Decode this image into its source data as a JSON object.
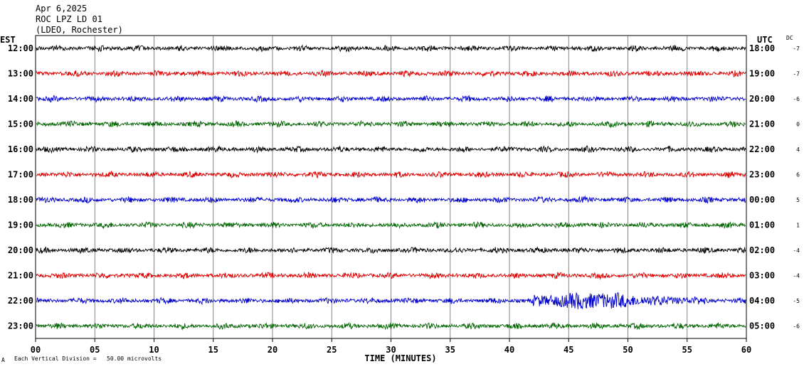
{
  "header": {
    "date": "Apr 6,2025",
    "station": "ROC LPZ LD 01",
    "network": "(LDEO, Rochester)"
  },
  "labels": {
    "left_zone": "EST",
    "right_zone": "UTC",
    "dc": "DC",
    "footer_note": "Each Vertical Division =   50.00 microvolts",
    "footer_mark": "A"
  },
  "colors": {
    "black": "#000000",
    "red": "#dd0000",
    "blue": "#0000cc",
    "green": "#006400",
    "grid": "#000000"
  },
  "chart_data": {
    "type": "line",
    "title": "",
    "xlabel": "TIME (MINUTES)",
    "ylabel": "",
    "xlim": [
      0,
      60
    ],
    "x_ticks": [
      "00",
      "05",
      "10",
      "15",
      "20",
      "25",
      "30",
      "35",
      "40",
      "45",
      "50",
      "55",
      "60"
    ],
    "grid": true,
    "series": [
      {
        "est": "12:00",
        "utc": "18:00",
        "dc": "-7",
        "color": "black"
      },
      {
        "est": "13:00",
        "utc": "19:00",
        "dc": "-7",
        "color": "red"
      },
      {
        "est": "14:00",
        "utc": "20:00",
        "dc": "-6",
        "color": "blue"
      },
      {
        "est": "15:00",
        "utc": "21:00",
        "dc": "0",
        "color": "green"
      },
      {
        "est": "16:00",
        "utc": "22:00",
        "dc": "4",
        "color": "black"
      },
      {
        "est": "17:00",
        "utc": "23:00",
        "dc": "6",
        "color": "red"
      },
      {
        "est": "18:00",
        "utc": "00:00",
        "dc": "5",
        "color": "blue"
      },
      {
        "est": "19:00",
        "utc": "01:00",
        "dc": "1",
        "color": "green"
      },
      {
        "est": "20:00",
        "utc": "02:00",
        "dc": "-4",
        "color": "black"
      },
      {
        "est": "21:00",
        "utc": "03:00",
        "dc": "-4",
        "color": "red"
      },
      {
        "est": "22:00",
        "utc": "04:00",
        "dc": "-5",
        "color": "blue"
      },
      {
        "est": "23:00",
        "utc": "05:00",
        "dc": "-6",
        "color": "green"
      }
    ]
  }
}
